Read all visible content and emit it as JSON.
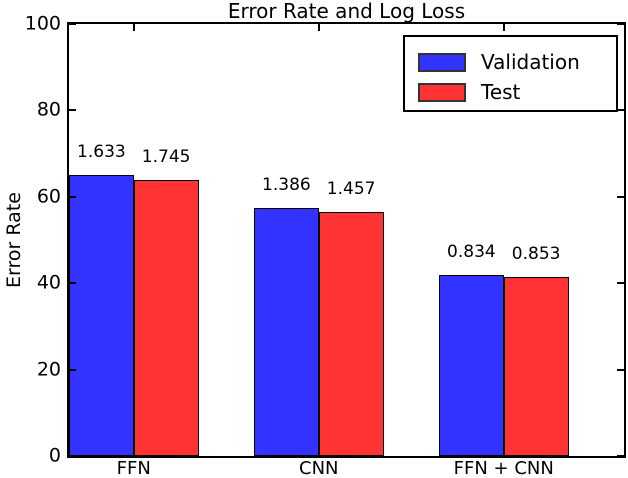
{
  "chart_data": {
    "type": "bar",
    "title": "Error Rate and Log Loss",
    "ylabel": "Error Rate",
    "xlabel": "",
    "categories": [
      "FFN",
      "CNN",
      "FFN + CNN"
    ],
    "series": [
      {
        "name": "Validation",
        "color": "#3333ff",
        "values": [
          65.0,
          57.5,
          42.0
        ],
        "bar_labels": [
          "1.633",
          "1.386",
          "0.834"
        ]
      },
      {
        "name": "Test",
        "color": "#ff3333",
        "values": [
          64.0,
          56.5,
          41.5
        ],
        "bar_labels": [
          "1.745",
          "1.457",
          "0.853"
        ]
      }
    ],
    "ylim": [
      0,
      100
    ],
    "yticks": [
      0,
      20,
      40,
      60,
      80,
      100
    ],
    "grid": false,
    "legend_position": "upper right",
    "bar_edge_color": "#000000",
    "axis_color": "#000000",
    "background_color": "#ffffff"
  }
}
